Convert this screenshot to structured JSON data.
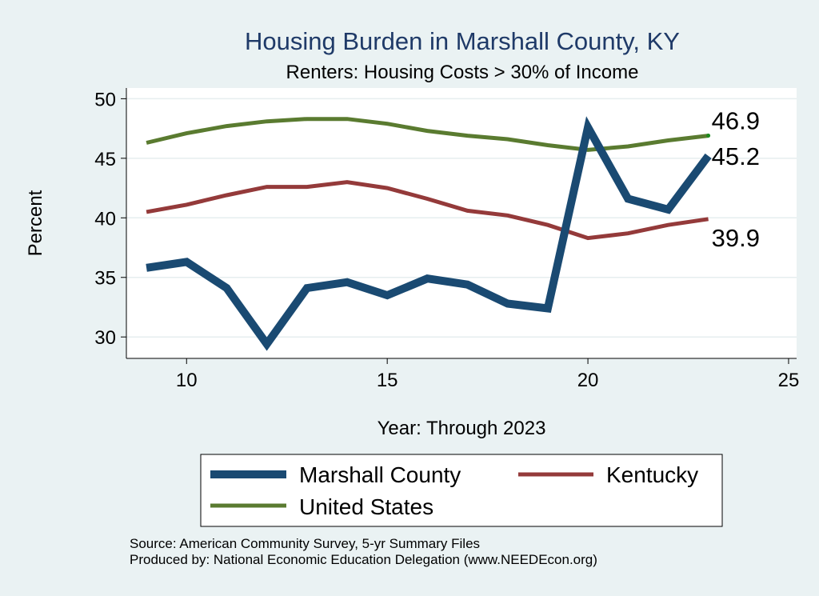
{
  "chart_data": {
    "type": "line",
    "title": "Housing Burden in Marshall County, KY",
    "subtitle": "Renters: Housing Costs > 30% of Income",
    "xlabel": "Year: Through 2023",
    "ylabel": "Percent",
    "xlim": [
      8.5,
      25.2
    ],
    "ylim": [
      28.2,
      50.9
    ],
    "xticks": [
      10,
      15,
      20,
      25
    ],
    "yticks": [
      30,
      35,
      40,
      45,
      50
    ],
    "grid": true,
    "legend_position": "bottom",
    "series": [
      {
        "name": "Marshall County",
        "color": "#1a4a72",
        "x": [
          9,
          10,
          11,
          12,
          13,
          14,
          15,
          16,
          17,
          18,
          19,
          20,
          21,
          22,
          23
        ],
        "values": [
          35.8,
          36.3,
          34.1,
          29.4,
          34.1,
          34.6,
          33.5,
          34.9,
          34.4,
          32.8,
          32.4,
          47.6,
          41.6,
          40.7,
          45.2
        ],
        "end_label": "45.2"
      },
      {
        "name": "Kentucky",
        "color": "#943a3a",
        "x": [
          9,
          10,
          11,
          12,
          13,
          14,
          15,
          16,
          17,
          18,
          19,
          20,
          21,
          22,
          23
        ],
        "values": [
          40.5,
          41.1,
          41.9,
          42.6,
          42.6,
          43.0,
          42.5,
          41.6,
          40.6,
          40.2,
          39.4,
          38.3,
          38.7,
          39.4,
          39.9
        ],
        "end_label": "39.9"
      },
      {
        "name": "United States",
        "color": "#5a7b30",
        "x": [
          9,
          10,
          11,
          12,
          13,
          14,
          15,
          16,
          17,
          18,
          19,
          20,
          21,
          22,
          23
        ],
        "values": [
          46.3,
          47.1,
          47.7,
          48.1,
          48.3,
          48.3,
          47.9,
          47.3,
          46.9,
          46.6,
          46.1,
          45.7,
          46.0,
          46.5,
          46.9
        ],
        "end_label": "46.9"
      }
    ],
    "legend": {
      "entries": [
        "Marshall County",
        "Kentucky",
        "United States"
      ]
    }
  },
  "source_note": "Source: American Community Survey, 5-yr Summary Files",
  "produced_note": "Produced by: National Economic Education Delegation (www.NEEDEcon.org)"
}
